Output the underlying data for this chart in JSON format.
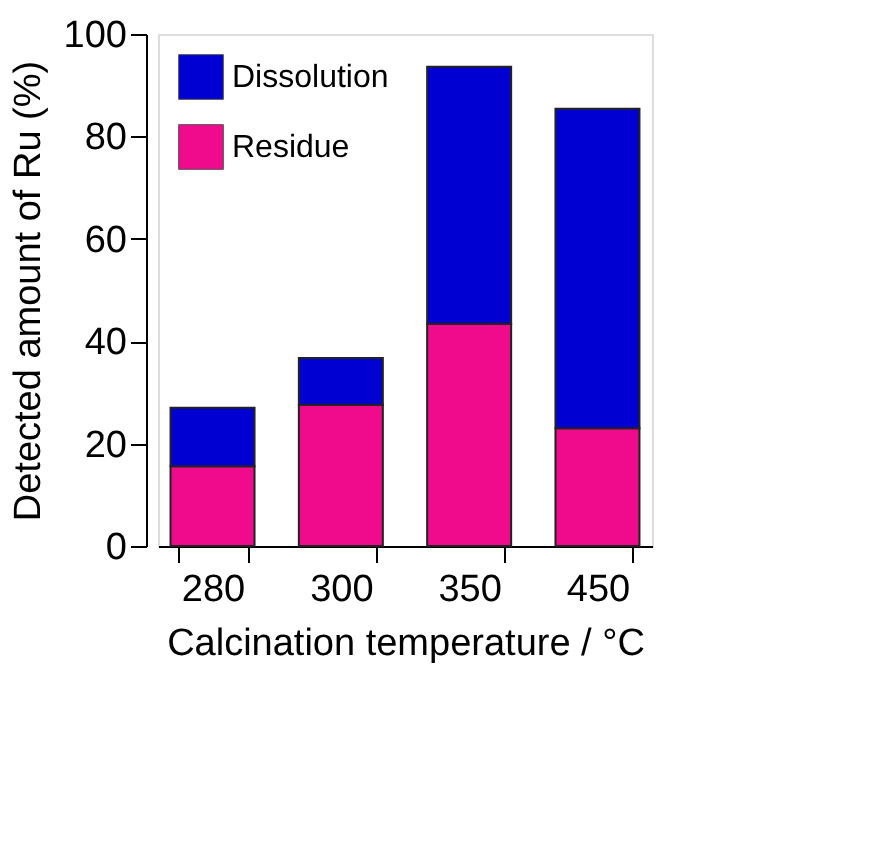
{
  "chart_data": {
    "type": "bar",
    "stacked": true,
    "xlabel": "Calcination temperature / °C",
    "ylabel": "Detected amount of Ru (%)",
    "categories": [
      "280",
      "300",
      "350",
      "450"
    ],
    "series": [
      {
        "name": "Residue",
        "color": "#f00a8c",
        "values": [
          15.6,
          27.6,
          43.4,
          23.0
        ]
      },
      {
        "name": "Dissolution",
        "color": "#0000d2",
        "values": [
          11.4,
          9.1,
          50.2,
          62.4
        ]
      }
    ],
    "ylim": [
      0,
      100
    ],
    "yticks": [
      0,
      20,
      40,
      60,
      80,
      100
    ],
    "grid": false,
    "legend": "top left"
  }
}
